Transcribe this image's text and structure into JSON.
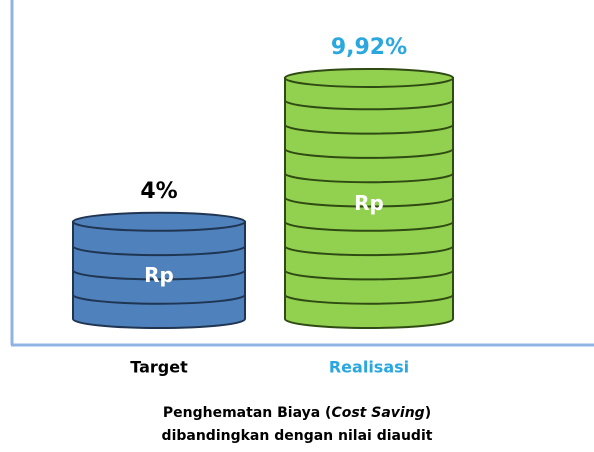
{
  "chart_data": {
    "type": "bar",
    "categories": [
      "Target",
      "Realisasi"
    ],
    "values": [
      4,
      9.92
    ],
    "value_labels": [
      "4%",
      "9,92%"
    ],
    "bar_label": "Rp",
    "colors": [
      "#4f81bd",
      "#92d050"
    ],
    "stroke_colors": [
      "#1f3552",
      "#2f4a12"
    ],
    "label_colors": [
      "#000000",
      "#2aa7df"
    ],
    "title": [
      "Penghematan Biaya (",
      "Cost Saving",
      ")",
      "dibandingkan  dengan nilai diaudit"
    ]
  }
}
